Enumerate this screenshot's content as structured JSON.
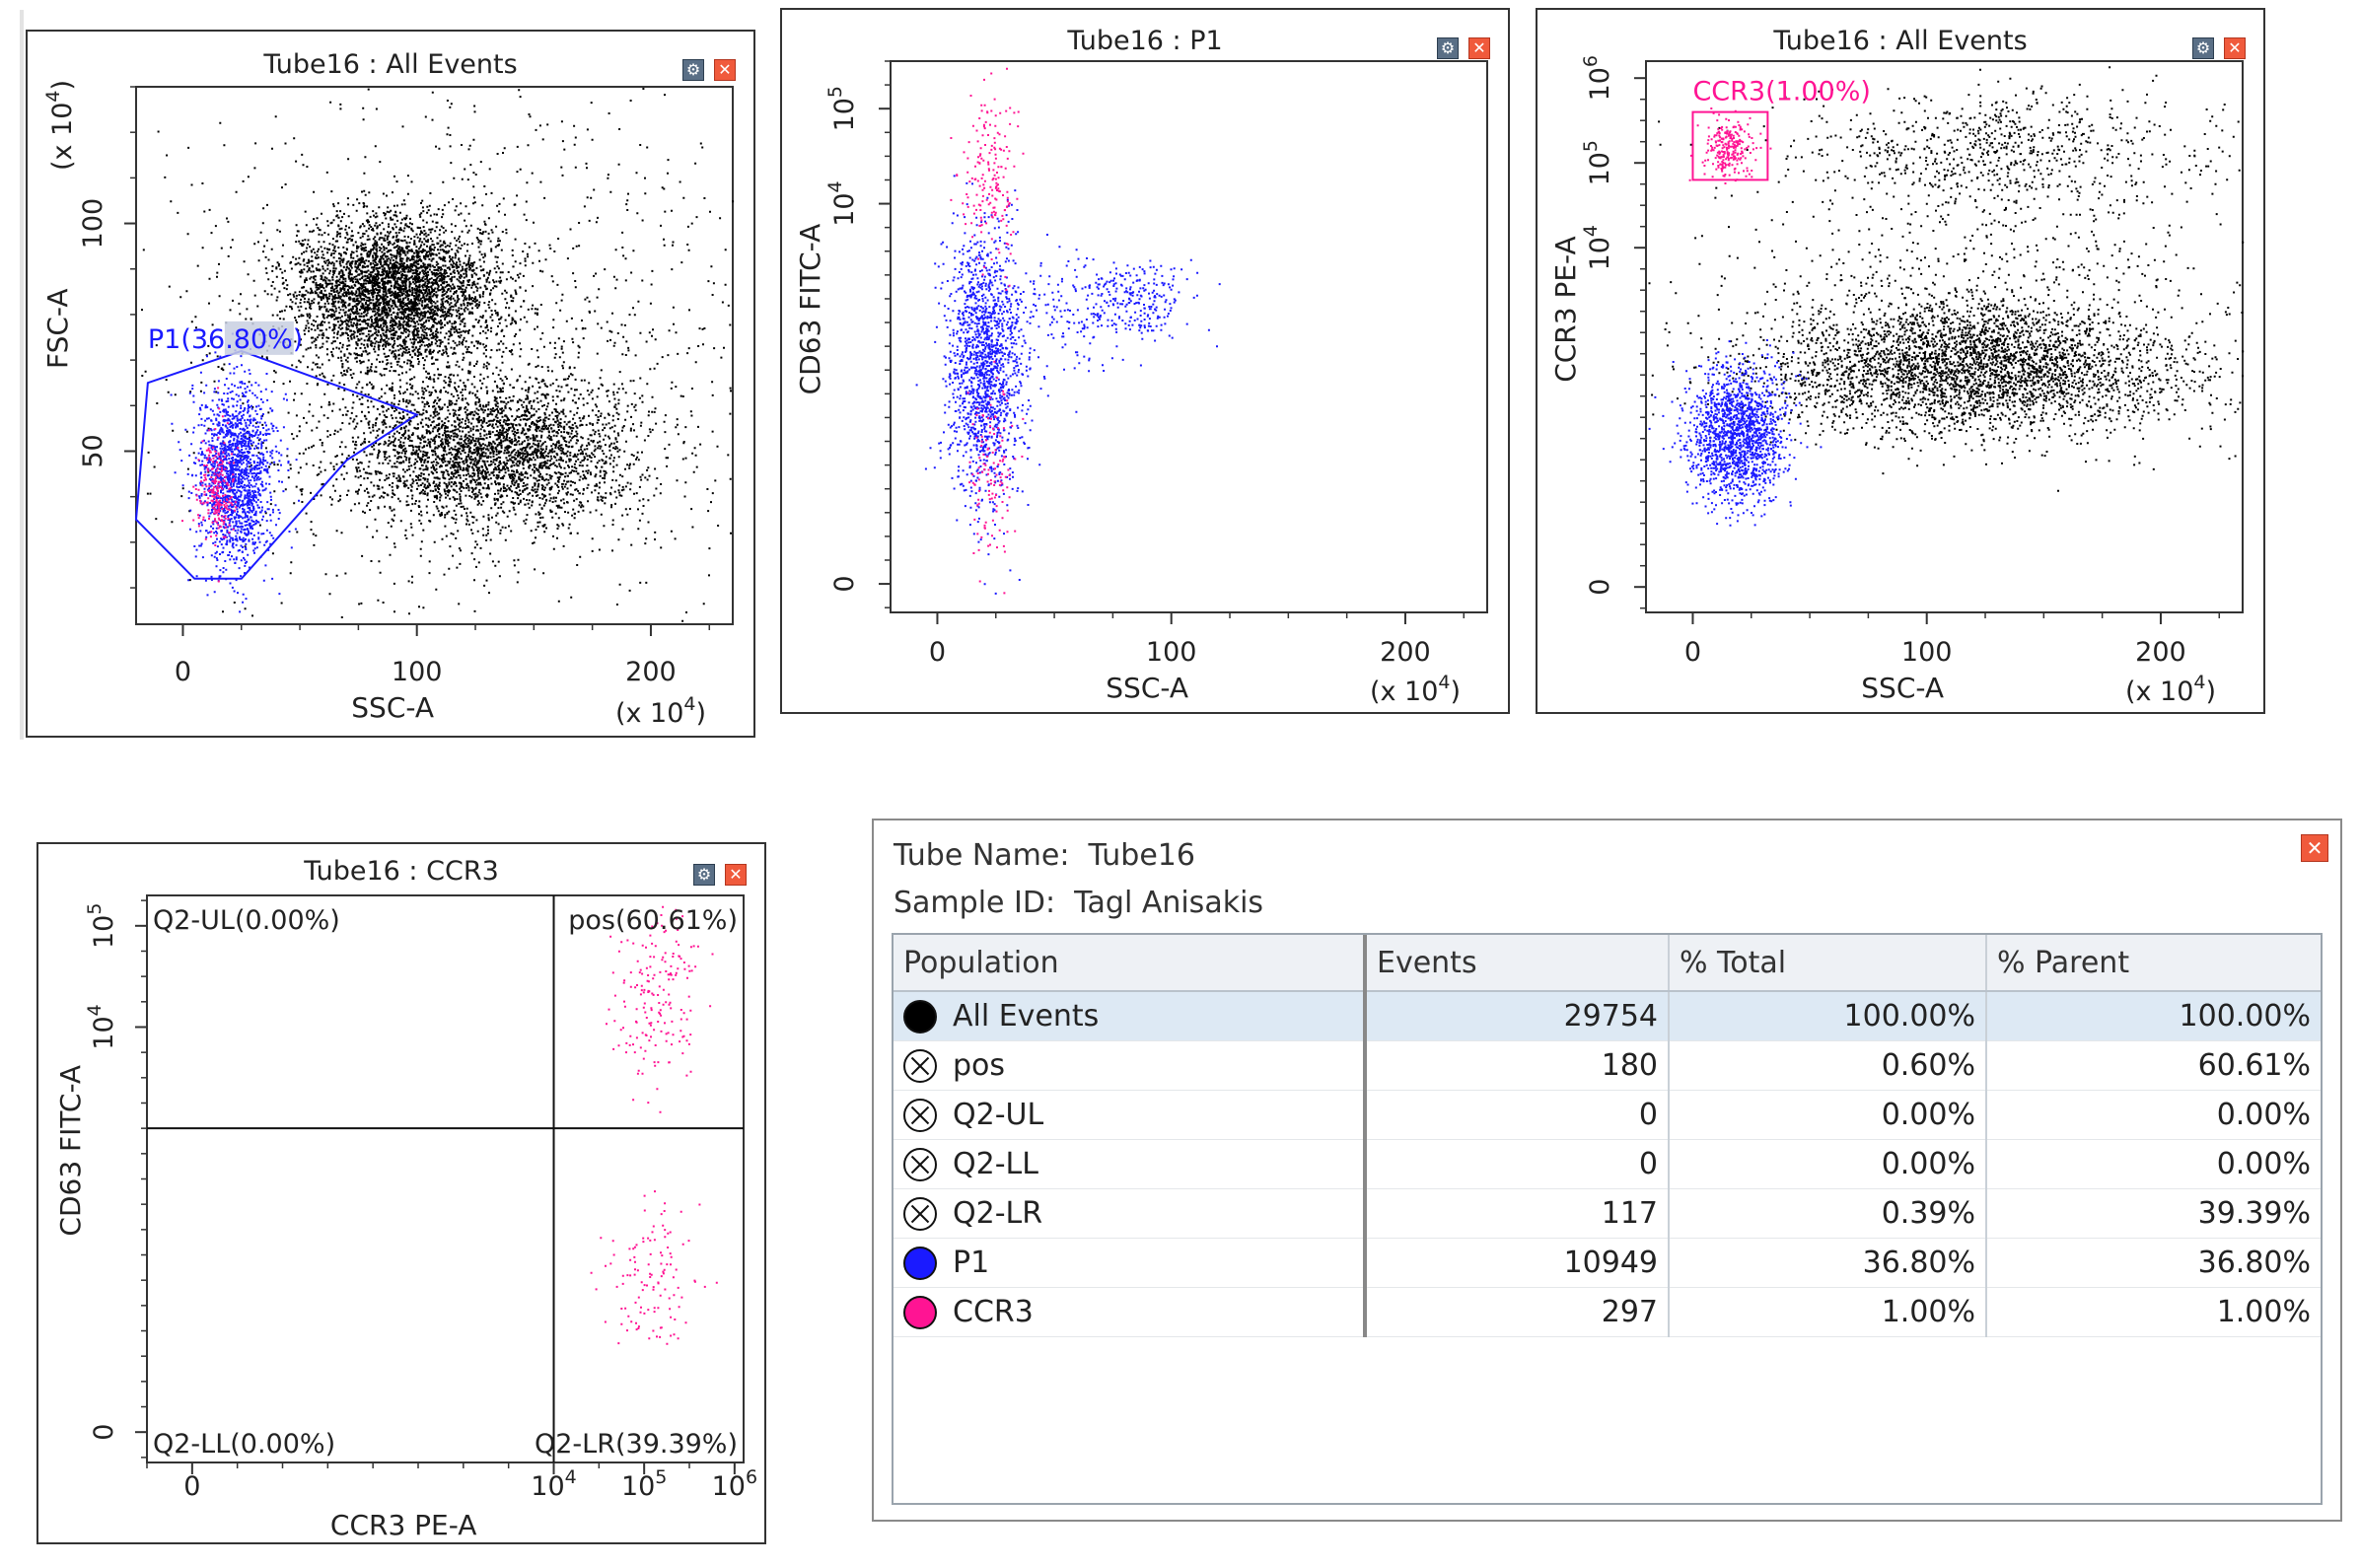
{
  "colors": {
    "black_events": "#000000",
    "p1": "#1a1aff",
    "ccr3": "#ff1493",
    "gate_line": "#1a1aff"
  },
  "chart_data": [
    {
      "type": "scatter",
      "title": "Tube16 : All Events",
      "xlabel": "SSC-A",
      "ylabel": "FSC-A",
      "x_unit_label": "(x 10^4)",
      "y_unit_label": "(x 10^4)",
      "xlim": [
        -20,
        235
      ],
      "ylim": [
        12,
        130
      ],
      "x_ticks": [
        {
          "value": 0,
          "label": "0"
        },
        {
          "value": 100,
          "label": "100"
        },
        {
          "value": 200,
          "label": "200"
        }
      ],
      "y_ticks": [
        {
          "value": 50,
          "label": "50"
        },
        {
          "value": 100,
          "label": "100"
        }
      ],
      "gate": {
        "name": "P1",
        "label": "P1(36.80%)",
        "polygon": [
          [
            5,
            22
          ],
          [
            -20,
            35
          ],
          [
            -15,
            65
          ],
          [
            25,
            72
          ],
          [
            100,
            58
          ],
          [
            70,
            48
          ],
          [
            25,
            22
          ]
        ]
      },
      "clusters": [
        {
          "series": "All Events",
          "cx": 90,
          "cy": 85,
          "sx": 22,
          "sy": 8,
          "n": 3800
        },
        {
          "series": "All Events",
          "cx": 130,
          "cy": 50,
          "sx": 32,
          "sy": 8,
          "n": 3000
        },
        {
          "series": "All Events",
          "cx": 120,
          "cy": 70,
          "sx": 70,
          "sy": 30,
          "n": 1400
        },
        {
          "series": "P1",
          "cx": 22,
          "cy": 45,
          "sx": 8,
          "sy": 10,
          "n": 1600
        },
        {
          "series": "CCR3",
          "cx": 14,
          "cy": 42,
          "sx": 4,
          "sy": 6,
          "n": 220
        }
      ]
    },
    {
      "type": "scatter",
      "title": "Tube16 : P1",
      "xlabel": "SSC-A",
      "ylabel": "CD63 FITC-A",
      "x_unit_label": "(x 10^4)",
      "xlim": [
        -20,
        235
      ],
      "ylim": [
        -0.3,
        5.5
      ],
      "x_ticks": [
        {
          "value": 0,
          "label": "0"
        },
        {
          "value": 100,
          "label": "100"
        },
        {
          "value": 200,
          "label": "200"
        }
      ],
      "y_ticks": [
        {
          "value": 0,
          "label": "0"
        },
        {
          "value": 4,
          "label": "10^4"
        },
        {
          "value": 5,
          "label": "10^5"
        }
      ],
      "clusters": [
        {
          "series": "P1",
          "cx": 20,
          "cy": 2.3,
          "sx": 8,
          "sy": 0.7,
          "n": 1500
        },
        {
          "series": "P1",
          "cx": 85,
          "cy": 3.0,
          "sx": 12,
          "sy": 0.2,
          "n": 220
        },
        {
          "series": "P1",
          "cx": 55,
          "cy": 2.9,
          "sx": 18,
          "sy": 0.3,
          "n": 180
        },
        {
          "series": "CCR3",
          "cx": 22,
          "cy": 1.2,
          "sx": 6,
          "sy": 0.5,
          "n": 120
        },
        {
          "series": "CCR3",
          "cx": 22,
          "cy": 4.3,
          "sx": 6,
          "sy": 0.45,
          "n": 180
        }
      ]
    },
    {
      "type": "scatter",
      "title": "Tube16 : All Events",
      "xlabel": "SSC-A",
      "ylabel": "CCR3 PE-A",
      "x_unit_label": "(x 10^4)",
      "xlim": [
        -20,
        235
      ],
      "ylim": [
        -0.3,
        6.2
      ],
      "x_ticks": [
        {
          "value": 0,
          "label": "0"
        },
        {
          "value": 100,
          "label": "100"
        },
        {
          "value": 200,
          "label": "200"
        }
      ],
      "y_ticks": [
        {
          "value": 0,
          "label": "0"
        },
        {
          "value": 4,
          "label": "10^4"
        },
        {
          "value": 5,
          "label": "10^5"
        },
        {
          "value": 6,
          "label": "10^6"
        }
      ],
      "gate": {
        "name": "CCR3",
        "label": "CCR3(1.00%)",
        "rect": {
          "x0": 0,
          "x1": 32,
          "y0": 4.8,
          "y1": 5.6
        }
      },
      "clusters": [
        {
          "series": "All Events",
          "cx": 120,
          "cy": 2.6,
          "sx": 45,
          "sy": 0.4,
          "n": 3500
        },
        {
          "series": "All Events",
          "cx": 130,
          "cy": 5.2,
          "sx": 45,
          "sy": 0.35,
          "n": 700
        },
        {
          "series": "All Events",
          "cx": 120,
          "cy": 3.8,
          "sx": 60,
          "sy": 0.8,
          "n": 600
        },
        {
          "series": "P1",
          "cx": 18,
          "cy": 1.8,
          "sx": 10,
          "sy": 0.4,
          "n": 1500
        },
        {
          "series": "CCR3",
          "cx": 15,
          "cy": 5.2,
          "sx": 5,
          "sy": 0.18,
          "n": 250
        }
      ]
    },
    {
      "type": "scatter",
      "title": "Tube16 : CCR3",
      "xlabel": "CCR3 PE-A",
      "ylabel": "CD63 FITC-A",
      "xlim": [
        -0.5,
        6.1
      ],
      "ylim": [
        -0.3,
        5.3
      ],
      "x_ticks": [
        {
          "value": 0,
          "label": "0"
        },
        {
          "value": 4,
          "label": "10^4"
        },
        {
          "value": 5,
          "label": "10^5"
        },
        {
          "value": 6,
          "label": "10^6"
        }
      ],
      "y_ticks": [
        {
          "value": 0,
          "label": "0"
        },
        {
          "value": 4,
          "label": "10^4"
        },
        {
          "value": 5,
          "label": "10^5"
        }
      ],
      "quadrant_split": {
        "x": 4.0,
        "y": 3.0
      },
      "quadrant_labels": {
        "ul": "Q2-UL(0.00%)",
        "ur": "pos(60.61%)",
        "ll": "Q2-LL(0.00%)",
        "lr": "Q2-LR(39.39%)"
      },
      "clusters": [
        {
          "series": "CCR3",
          "cx": 5.1,
          "cy": 4.3,
          "sx": 0.25,
          "sy": 0.45,
          "n": 180
        },
        {
          "series": "CCR3",
          "cx": 5.1,
          "cy": 1.5,
          "sx": 0.25,
          "sy": 0.35,
          "n": 117
        }
      ]
    }
  ],
  "stats": {
    "tube_name_label": "Tube Name:",
    "tube_name": "Tube16",
    "sample_id_label": "Sample ID:",
    "sample_id": "Tagl Anisakis",
    "close_glyph": "✕",
    "columns": [
      "Population",
      "Events",
      "% Total",
      "% Parent"
    ],
    "rows": [
      {
        "population": "All Events",
        "marker": "dot",
        "color": "#000000",
        "events": "29754",
        "total": "100.00%",
        "parent": "100.00%"
      },
      {
        "population": "pos",
        "marker": "x",
        "color": "#ffffff",
        "events": "180",
        "total": "0.60%",
        "parent": "60.61%"
      },
      {
        "population": "Q2-UL",
        "marker": "x",
        "color": "#ffffff",
        "events": "0",
        "total": "0.00%",
        "parent": "0.00%"
      },
      {
        "population": "Q2-LL",
        "marker": "x",
        "color": "#ffffff",
        "events": "0",
        "total": "0.00%",
        "parent": "0.00%"
      },
      {
        "population": "Q2-LR",
        "marker": "x",
        "color": "#ffffff",
        "events": "117",
        "total": "0.39%",
        "parent": "39.39%"
      },
      {
        "population": "P1",
        "marker": "dot",
        "color": "#1a1aff",
        "events": "10949",
        "total": "36.80%",
        "parent": "36.80%"
      },
      {
        "population": "CCR3",
        "marker": "dot",
        "color": "#ff1493",
        "events": "297",
        "total": "1.00%",
        "parent": "1.00%"
      }
    ]
  },
  "panel_buttons": {
    "gear_glyph": "⚙",
    "close_glyph": "✕"
  }
}
